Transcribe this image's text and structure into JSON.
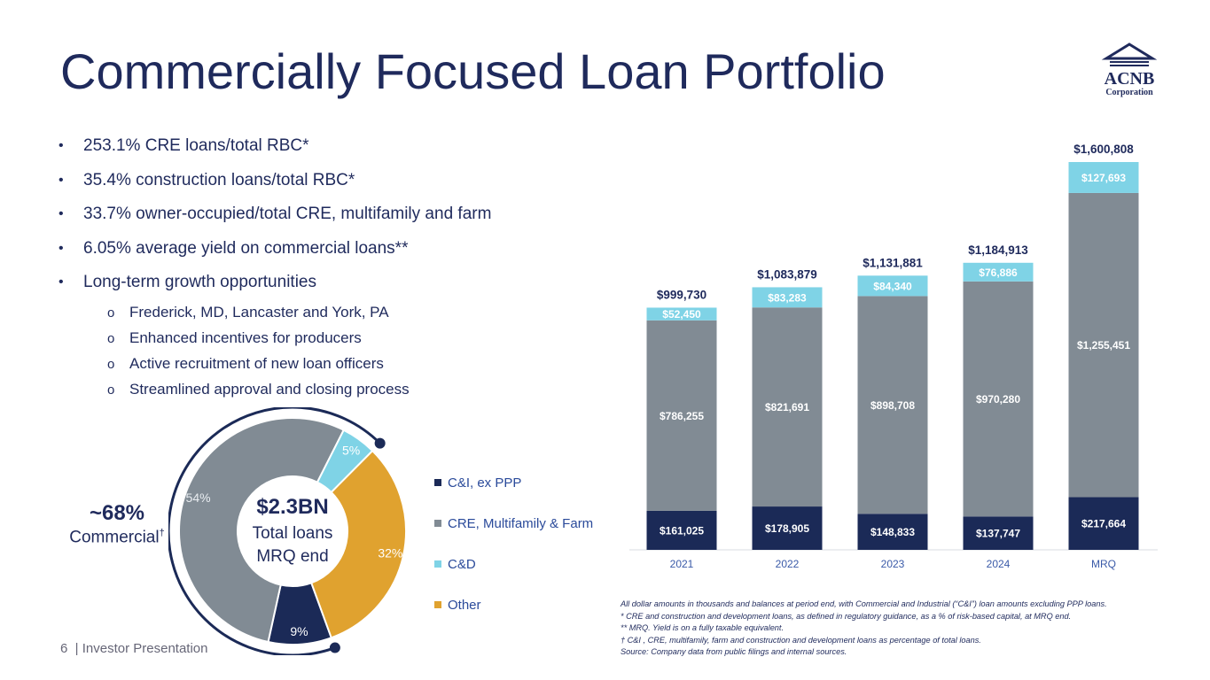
{
  "title": "Commercially Focused Loan Portfolio",
  "logo": {
    "name": "ACNB",
    "sub": "Corporation"
  },
  "bullets": [
    {
      "text": "253.1% CRE loans/total RBC*",
      "sub": false
    },
    {
      "text": "35.4% construction loans/total RBC*",
      "sub": false
    },
    {
      "text": "33.7% owner-occupied/total CRE, multifamily and farm",
      "sub": false
    },
    {
      "text": "6.05% average yield on commercial loans**",
      "sub": false
    },
    {
      "text": "Long-term growth opportunities",
      "sub": false
    },
    {
      "text": "Frederick, MD, Lancaster and York, PA",
      "sub": true
    },
    {
      "text": "Enhanced incentives for producers",
      "sub": true
    },
    {
      "text": "Active recruitment of new loan officers",
      "sub": true
    },
    {
      "text": "Streamlined approval and closing process",
      "sub": true
    }
  ],
  "commercial": {
    "pct": "~68%",
    "label": "Commercial",
    "mark": "†"
  },
  "footer": "6  | Investor Presentation",
  "notes": [
    "All dollar amounts in thousands and balances at period end, with Commercial and Industrial (“C&I”) loan amounts excluding PPP loans.",
    "* CRE and construction and development  loans, as defined in regulatory guidance, as a % of risk-based capital, at MRQ end.",
    "** MRQ. Yield is on a fully taxable equivalent.",
    "† C&I , CRE, multifamily, farm and construction and development loans as percentage of total loans.",
    "Source: Company data from public filings and internal sources."
  ],
  "colors": {
    "navy": "#1b2a57",
    "gray": "#818b94",
    "light_blue": "#7fd3e6",
    "gold": "#e0a22f",
    "text": "#1f2a5c"
  },
  "chart_data": [
    {
      "type": "pie",
      "center_value": "$2.3BN",
      "center_line1": "Total loans",
      "center_line2": "MRQ end",
      "slices": [
        {
          "name": "C&I, ex PPP",
          "value": 9,
          "label": "9%",
          "color": "#1b2a57"
        },
        {
          "name": "CRE, Multifamily & Farm",
          "value": 54,
          "label": "54%",
          "color": "#818b94"
        },
        {
          "name": "C&D",
          "value": 5,
          "label": "5%",
          "color": "#7fd3e6"
        },
        {
          "name": "Other",
          "value": 32,
          "label": "32%",
          "color": "#e0a22f"
        }
      ],
      "legend": [
        "C&I, ex PPP",
        "CRE, Multifamily & Farm",
        "C&D",
        "Other"
      ],
      "legend_position": "right"
    },
    {
      "type": "bar",
      "stacked": true,
      "categories": [
        "2021",
        "2022",
        "2023",
        "2024",
        "MRQ"
      ],
      "series": [
        {
          "values": [
            161025,
            178905,
            148833,
            137747,
            217664
          ],
          "labels": [
            "$161,025",
            "$178,905",
            "$148,833",
            "$137,747",
            "$217,664"
          ],
          "color": "#1b2a57"
        },
        {
          "values": [
            786255,
            821691,
            898708,
            970280,
            1255451
          ],
          "labels": [
            "$786,255",
            "$821,691",
            "$898,708",
            "$970,280",
            "$1,255,451"
          ],
          "color": "#818b94"
        },
        {
          "values": [
            52450,
            83283,
            84340,
            76886,
            127693
          ],
          "labels": [
            "$52,450",
            "$83,283",
            "$84,340",
            "$76,886",
            "$127,693"
          ],
          "color": "#7fd3e6"
        }
      ],
      "totals": [
        999730,
        1083879,
        1131881,
        1184913,
        1600808
      ],
      "total_labels": [
        "$999,730",
        "$1,083,879",
        "$1,131,881",
        "$1,184,913",
        "$1,600,808"
      ],
      "ylim": [
        0,
        1600808
      ],
      "grid": false,
      "legend": "none"
    }
  ]
}
